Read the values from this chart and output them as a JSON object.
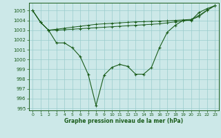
{
  "title": "Graphe pression niveau de la mer (hPa)",
  "bg_color": "#cce8e8",
  "grid_color": "#99cccc",
  "line_color": "#1a5c1a",
  "xlim": [
    -0.5,
    23.5
  ],
  "ylim": [
    994.8,
    1005.8
  ],
  "yticks": [
    995,
    996,
    997,
    998,
    999,
    1000,
    1001,
    1002,
    1003,
    1004,
    1005
  ],
  "xticks": [
    0,
    1,
    2,
    3,
    4,
    5,
    6,
    7,
    8,
    9,
    10,
    11,
    12,
    13,
    14,
    15,
    16,
    17,
    18,
    19,
    20,
    21,
    22,
    23
  ],
  "series1": [
    1005.0,
    1003.8,
    1003.0,
    1001.7,
    1001.7,
    1001.2,
    1000.3,
    998.5,
    995.3,
    998.4,
    999.2,
    999.5,
    999.3,
    998.5,
    998.5,
    999.2,
    1001.2,
    1002.8,
    1003.5,
    1004.0,
    1004.0,
    1004.8,
    1005.2,
    1005.5
  ],
  "series2": [
    1005.0,
    1003.8,
    1003.0,
    1003.0,
    1003.05,
    1003.1,
    1003.15,
    1003.2,
    1003.25,
    1003.3,
    1003.35,
    1003.4,
    1003.45,
    1003.5,
    1003.55,
    1003.6,
    1003.65,
    1003.75,
    1003.85,
    1003.95,
    1004.05,
    1004.4,
    1005.0,
    1005.5
  ],
  "series3": [
    1005.0,
    1003.8,
    1003.0,
    1003.1,
    1003.2,
    1003.3,
    1003.4,
    1003.5,
    1003.6,
    1003.65,
    1003.7,
    1003.75,
    1003.8,
    1003.85,
    1003.87,
    1003.9,
    1003.92,
    1003.95,
    1004.0,
    1004.05,
    1004.1,
    1004.5,
    1005.05,
    1005.5
  ]
}
